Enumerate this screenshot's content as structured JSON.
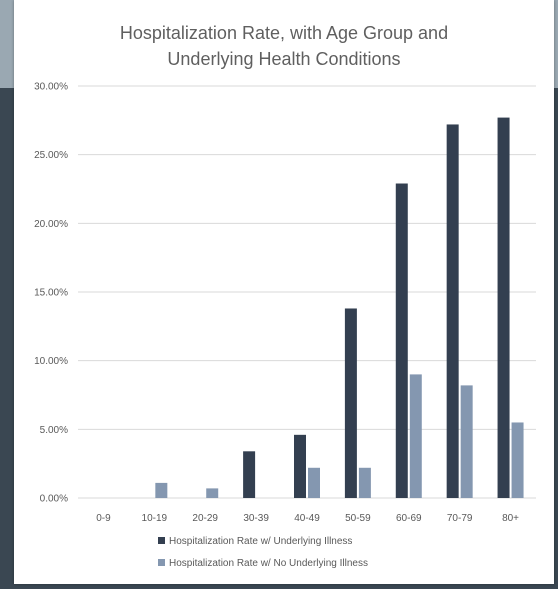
{
  "chart_data": {
    "type": "bar",
    "title_lines": [
      "Hospitalization Rate, with Age Group and",
      "Underlying Health Conditions"
    ],
    "categories": [
      "0-9",
      "10-19",
      "20-29",
      "30-39",
      "40-49",
      "50-59",
      "60-69",
      "70-79",
      "80+"
    ],
    "series": [
      {
        "name": "Hospitalization Rate w/ Underlying Illness",
        "color": "#333f50",
        "values": [
          0,
          0,
          0,
          3.4,
          4.6,
          13.8,
          22.9,
          27.2,
          27.7
        ]
      },
      {
        "name": "Hospitalization Rate w/ No Underlying Illness",
        "color": "#8497b0",
        "values": [
          0,
          1.1,
          0.7,
          0,
          2.2,
          2.2,
          9.0,
          8.2,
          5.5
        ]
      }
    ],
    "y_ticks": [
      "0.00%",
      "5.00%",
      "10.00%",
      "15.00%",
      "20.00%",
      "25.00%",
      "30.00%"
    ],
    "ylim": [
      0,
      30
    ],
    "y_unit": "percent",
    "grid": true,
    "legend_position": "bottom"
  }
}
